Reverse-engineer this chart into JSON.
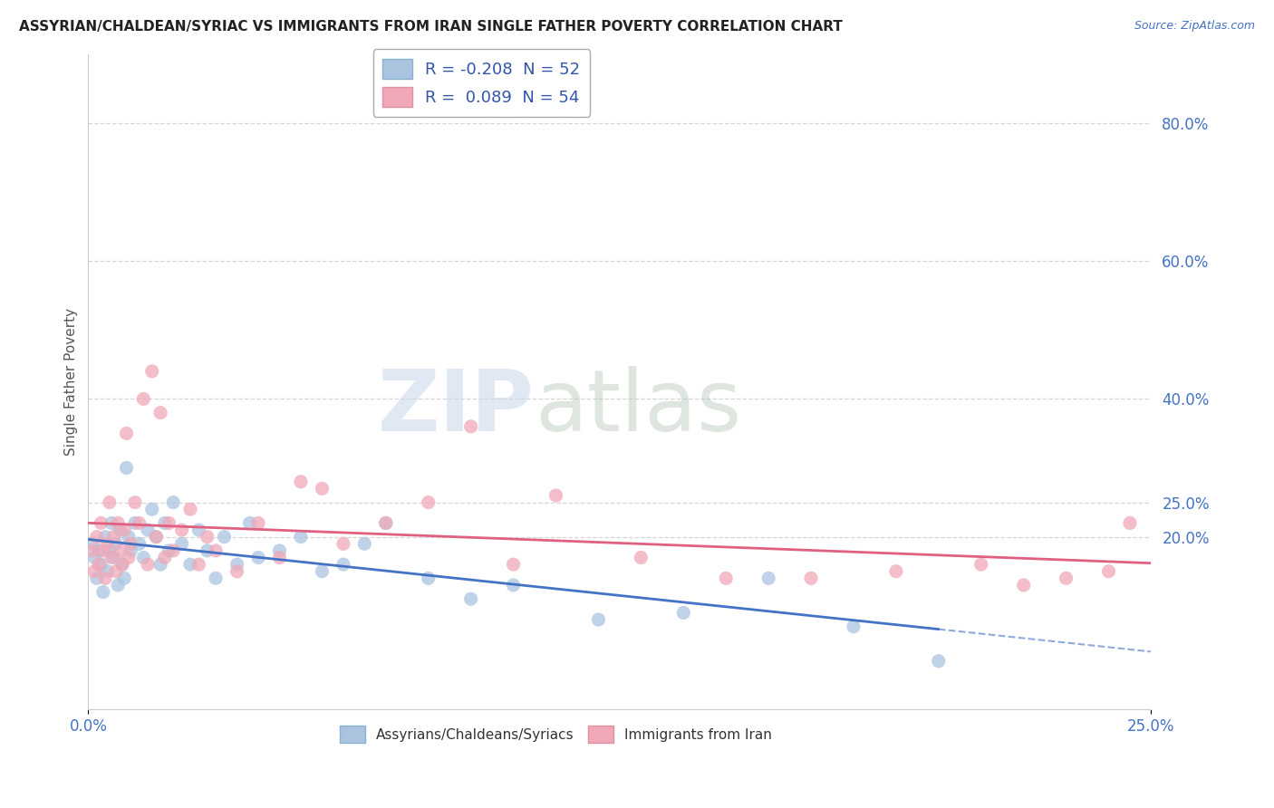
{
  "title": "ASSYRIAN/CHALDEAN/SYRIAC VS IMMIGRANTS FROM IRAN SINGLE FATHER POVERTY CORRELATION CHART",
  "source": "Source: ZipAtlas.com",
  "ylabel": "Single Father Poverty",
  "xlim": [
    0.0,
    25.0
  ],
  "ylim": [
    -5.0,
    90.0
  ],
  "ytick_vals": [
    20.0,
    25.0,
    40.0,
    60.0,
    80.0
  ],
  "ytick_labels": [
    "20.0%",
    "25.0%",
    "40.0%",
    "60.0%",
    "80.0%"
  ],
  "legend_blue_r": "-0.208",
  "legend_blue_n": "52",
  "legend_pink_r": "0.089",
  "legend_pink_n": "54",
  "blue_color": "#aac4e0",
  "pink_color": "#f0a8b8",
  "trend_blue_color": "#4472c4",
  "trend_pink_color": "#e06080",
  "grid_color": "#cccccc",
  "background_color": "#ffffff",
  "blue_scatter": [
    [
      0.1,
      19.0
    ],
    [
      0.15,
      17.0
    ],
    [
      0.2,
      14.0
    ],
    [
      0.25,
      18.0
    ],
    [
      0.3,
      16.0
    ],
    [
      0.35,
      12.0
    ],
    [
      0.4,
      20.0
    ],
    [
      0.45,
      15.0
    ],
    [
      0.5,
      18.0
    ],
    [
      0.55,
      22.0
    ],
    [
      0.6,
      17.0
    ],
    [
      0.65,
      19.0
    ],
    [
      0.7,
      13.0
    ],
    [
      0.75,
      21.0
    ],
    [
      0.8,
      16.0
    ],
    [
      0.85,
      14.0
    ],
    [
      0.9,
      30.0
    ],
    [
      0.95,
      20.0
    ],
    [
      1.0,
      18.0
    ],
    [
      1.1,
      22.0
    ],
    [
      1.2,
      19.0
    ],
    [
      1.3,
      17.0
    ],
    [
      1.4,
      21.0
    ],
    [
      1.5,
      24.0
    ],
    [
      1.6,
      20.0
    ],
    [
      1.7,
      16.0
    ],
    [
      1.8,
      22.0
    ],
    [
      1.9,
      18.0
    ],
    [
      2.0,
      25.0
    ],
    [
      2.2,
      19.0
    ],
    [
      2.4,
      16.0
    ],
    [
      2.6,
      21.0
    ],
    [
      2.8,
      18.0
    ],
    [
      3.0,
      14.0
    ],
    [
      3.2,
      20.0
    ],
    [
      3.5,
      16.0
    ],
    [
      3.8,
      22.0
    ],
    [
      4.0,
      17.0
    ],
    [
      4.5,
      18.0
    ],
    [
      5.0,
      20.0
    ],
    [
      5.5,
      15.0
    ],
    [
      6.0,
      16.0
    ],
    [
      6.5,
      19.0
    ],
    [
      7.0,
      22.0
    ],
    [
      8.0,
      14.0
    ],
    [
      9.0,
      11.0
    ],
    [
      10.0,
      13.0
    ],
    [
      12.0,
      8.0
    ],
    [
      14.0,
      9.0
    ],
    [
      16.0,
      14.0
    ],
    [
      18.0,
      7.0
    ],
    [
      20.0,
      2.0
    ]
  ],
  "pink_scatter": [
    [
      0.1,
      18.0
    ],
    [
      0.15,
      15.0
    ],
    [
      0.2,
      20.0
    ],
    [
      0.25,
      16.0
    ],
    [
      0.3,
      22.0
    ],
    [
      0.35,
      18.0
    ],
    [
      0.4,
      14.0
    ],
    [
      0.45,
      19.0
    ],
    [
      0.5,
      25.0
    ],
    [
      0.55,
      17.0
    ],
    [
      0.6,
      20.0
    ],
    [
      0.65,
      15.0
    ],
    [
      0.7,
      22.0
    ],
    [
      0.75,
      18.0
    ],
    [
      0.8,
      16.0
    ],
    [
      0.85,
      21.0
    ],
    [
      0.9,
      35.0
    ],
    [
      0.95,
      17.0
    ],
    [
      1.0,
      19.0
    ],
    [
      1.1,
      25.0
    ],
    [
      1.2,
      22.0
    ],
    [
      1.3,
      40.0
    ],
    [
      1.4,
      16.0
    ],
    [
      1.5,
      44.0
    ],
    [
      1.6,
      20.0
    ],
    [
      1.7,
      38.0
    ],
    [
      1.8,
      17.0
    ],
    [
      1.9,
      22.0
    ],
    [
      2.0,
      18.0
    ],
    [
      2.2,
      21.0
    ],
    [
      2.4,
      24.0
    ],
    [
      2.6,
      16.0
    ],
    [
      2.8,
      20.0
    ],
    [
      3.0,
      18.0
    ],
    [
      3.5,
      15.0
    ],
    [
      4.0,
      22.0
    ],
    [
      4.5,
      17.0
    ],
    [
      5.0,
      28.0
    ],
    [
      5.5,
      27.0
    ],
    [
      6.0,
      19.0
    ],
    [
      7.0,
      22.0
    ],
    [
      8.0,
      25.0
    ],
    [
      9.0,
      36.0
    ],
    [
      10.0,
      16.0
    ],
    [
      11.0,
      26.0
    ],
    [
      13.0,
      17.0
    ],
    [
      15.0,
      14.0
    ],
    [
      17.0,
      14.0
    ],
    [
      19.0,
      15.0
    ],
    [
      21.0,
      16.0
    ],
    [
      22.0,
      13.0
    ],
    [
      23.0,
      14.0
    ],
    [
      24.0,
      15.0
    ],
    [
      24.5,
      22.0
    ]
  ]
}
